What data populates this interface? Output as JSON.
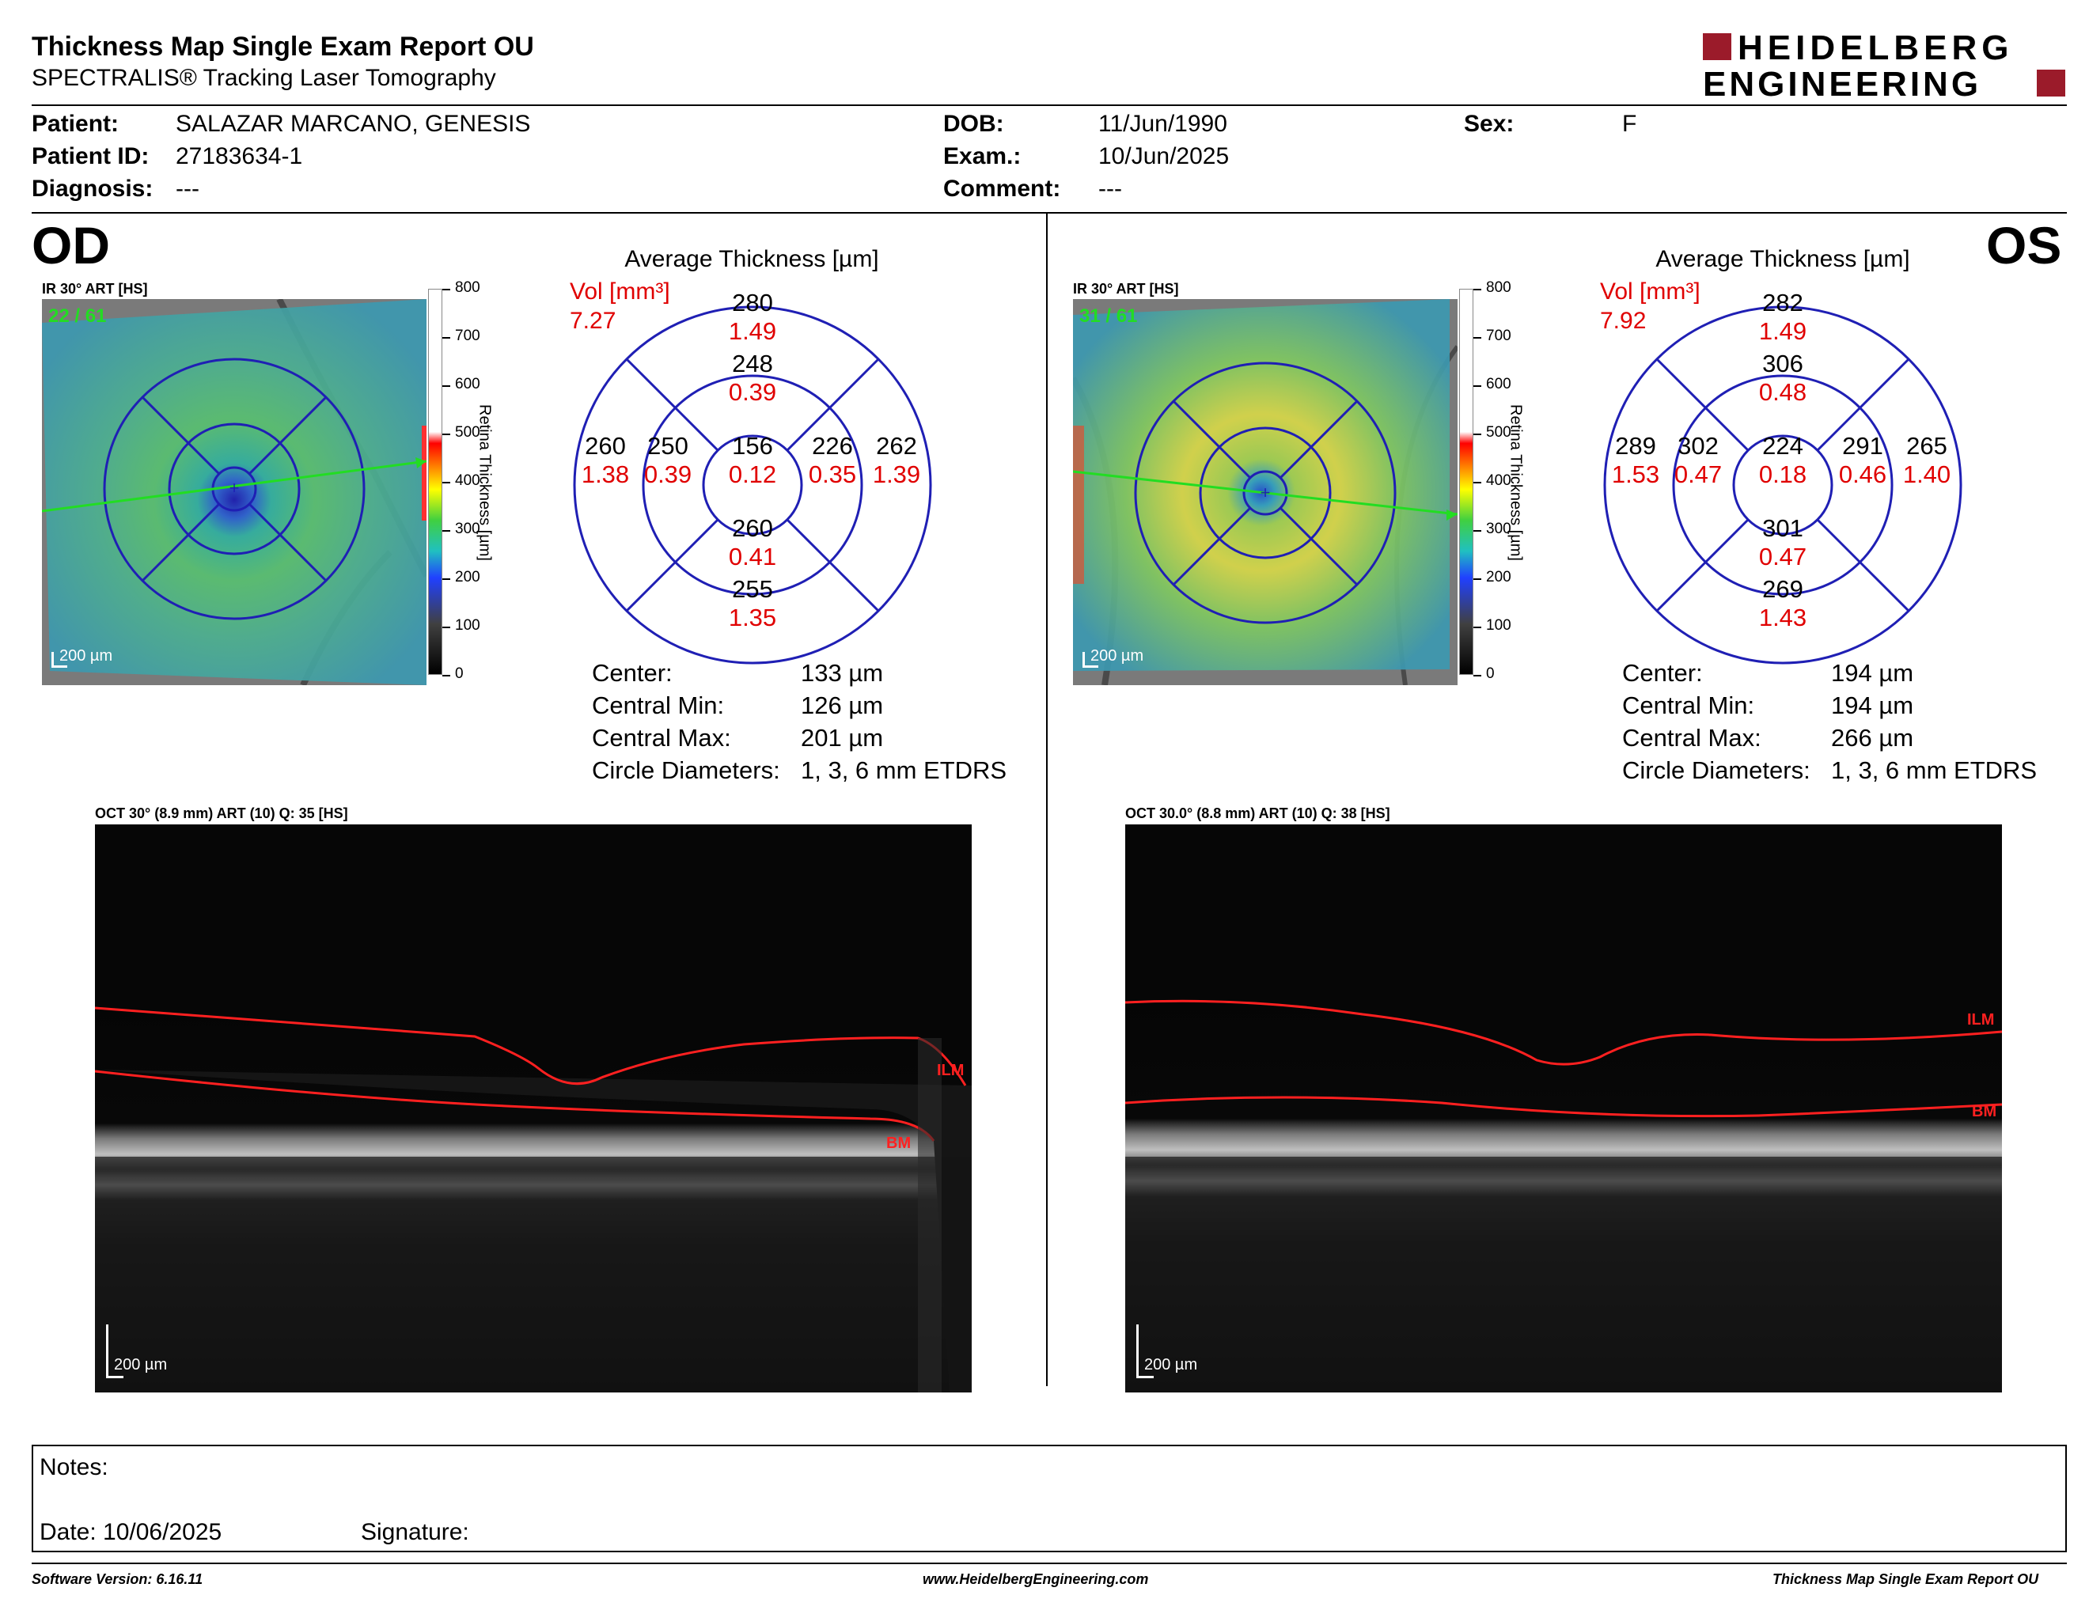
{
  "header": {
    "title": "Thickness Map Single Exam Report OU",
    "subtitle": "SPECTRALIS® Tracking Laser Tomography",
    "logo_line1": "HEIDELBERG",
    "logo_line2": "ENGINEERING"
  },
  "patient": {
    "patient_label": "Patient:",
    "patient_value": "SALAZAR MARCANO, GENESIS",
    "id_label": "Patient ID:",
    "id_value": "27183634-1",
    "diagnosis_label": "Diagnosis:",
    "diagnosis_value": "---",
    "dob_label": "DOB:",
    "dob_value": "11/Jun/1990",
    "exam_label": "Exam.:",
    "exam_value": "10/Jun/2025",
    "comment_label": "Comment:",
    "comment_value": "---",
    "sex_label": "Sex:",
    "sex_value": "F"
  },
  "od": {
    "eye": "OD",
    "ir_label": "IR 30° ART [HS]",
    "ir_counter": "22 / 61",
    "ir_scale": "200 µm",
    "colorbar_ticks": [
      "800",
      "700",
      "600",
      "500",
      "400",
      "300",
      "200",
      "100",
      "0"
    ],
    "colorbar_title": "Retina  Thickness [µm]",
    "avg_title": "Average Thickness [µm]",
    "vol_label": "Vol [mm³]",
    "vol_value": "7.27",
    "sectors": {
      "outer_sup": "280",
      "outer_sup_vol": "1.49",
      "inner_sup": "248",
      "inner_sup_vol": "0.39",
      "outer_nas": "260",
      "outer_nas_vol": "1.38",
      "inner_nas": "250",
      "inner_nas_vol": "0.39",
      "center": "156",
      "center_vol": "0.12",
      "inner_tmp": "226",
      "inner_tmp_vol": "0.35",
      "outer_tmp": "262",
      "outer_tmp_vol": "1.39",
      "inner_inf": "260",
      "inner_inf_vol": "0.41",
      "outer_inf": "255",
      "outer_inf_vol": "1.35"
    },
    "stats": {
      "center_label": "Center:",
      "center_value": "133 µm",
      "min_label": "Central Min:",
      "min_value": "126 µm",
      "max_label": "Central Max:",
      "max_value": "201 µm",
      "diam_label": "Circle Diameters:",
      "diam_value": "1, 3, 6 mm ETDRS"
    },
    "oct_label": "OCT 30° (8.9 mm) ART (10) Q: 35 [HS]",
    "oct_scale": "200 µm",
    "ilm": "ILM",
    "bm": "BM"
  },
  "os": {
    "eye": "OS",
    "ir_label": "IR 30° ART [HS]",
    "ir_counter": "31 / 61",
    "ir_scale": "200 µm",
    "colorbar_ticks": [
      "800",
      "700",
      "600",
      "500",
      "400",
      "300",
      "200",
      "100",
      "0"
    ],
    "colorbar_title": "Retina  Thickness [µm]",
    "avg_title": "Average Thickness [µm]",
    "vol_label": "Vol [mm³]",
    "vol_value": "7.92",
    "sectors": {
      "outer_sup": "282",
      "outer_sup_vol": "1.49",
      "inner_sup": "306",
      "inner_sup_vol": "0.48",
      "outer_nas": "289",
      "outer_nas_vol": "1.53",
      "inner_nas": "302",
      "inner_nas_vol": "0.47",
      "center": "224",
      "center_vol": "0.18",
      "inner_tmp": "291",
      "inner_tmp_vol": "0.46",
      "outer_tmp": "265",
      "outer_tmp_vol": "1.40",
      "inner_inf": "301",
      "inner_inf_vol": "0.47",
      "outer_inf": "269",
      "outer_inf_vol": "1.43"
    },
    "stats": {
      "center_label": "Center:",
      "center_value": "194 µm",
      "min_label": "Central Min:",
      "min_value": "194 µm",
      "max_label": "Central Max:",
      "max_value": "266 µm",
      "diam_label": "Circle Diameters:",
      "diam_value": "1, 3, 6 mm ETDRS"
    },
    "oct_label": "OCT 30.0° (8.8 mm) ART (10) Q: 38 [HS]",
    "oct_scale": "200 µm",
    "ilm": "ILM",
    "bm": "BM"
  },
  "notes": {
    "notes_label": "Notes:",
    "date_label": "Date: 10/06/2025",
    "signature_label": "Signature:"
  },
  "footer": {
    "software": "Software Version: 6.16.11",
    "website": "www.HeidelbergEngineering.com",
    "report_name": "Thickness Map Single Exam Report OU"
  },
  "colors": {
    "red_text": "#e00000",
    "grid_blue": "#1f1fb4",
    "logo_red": "#9b1b2a"
  }
}
